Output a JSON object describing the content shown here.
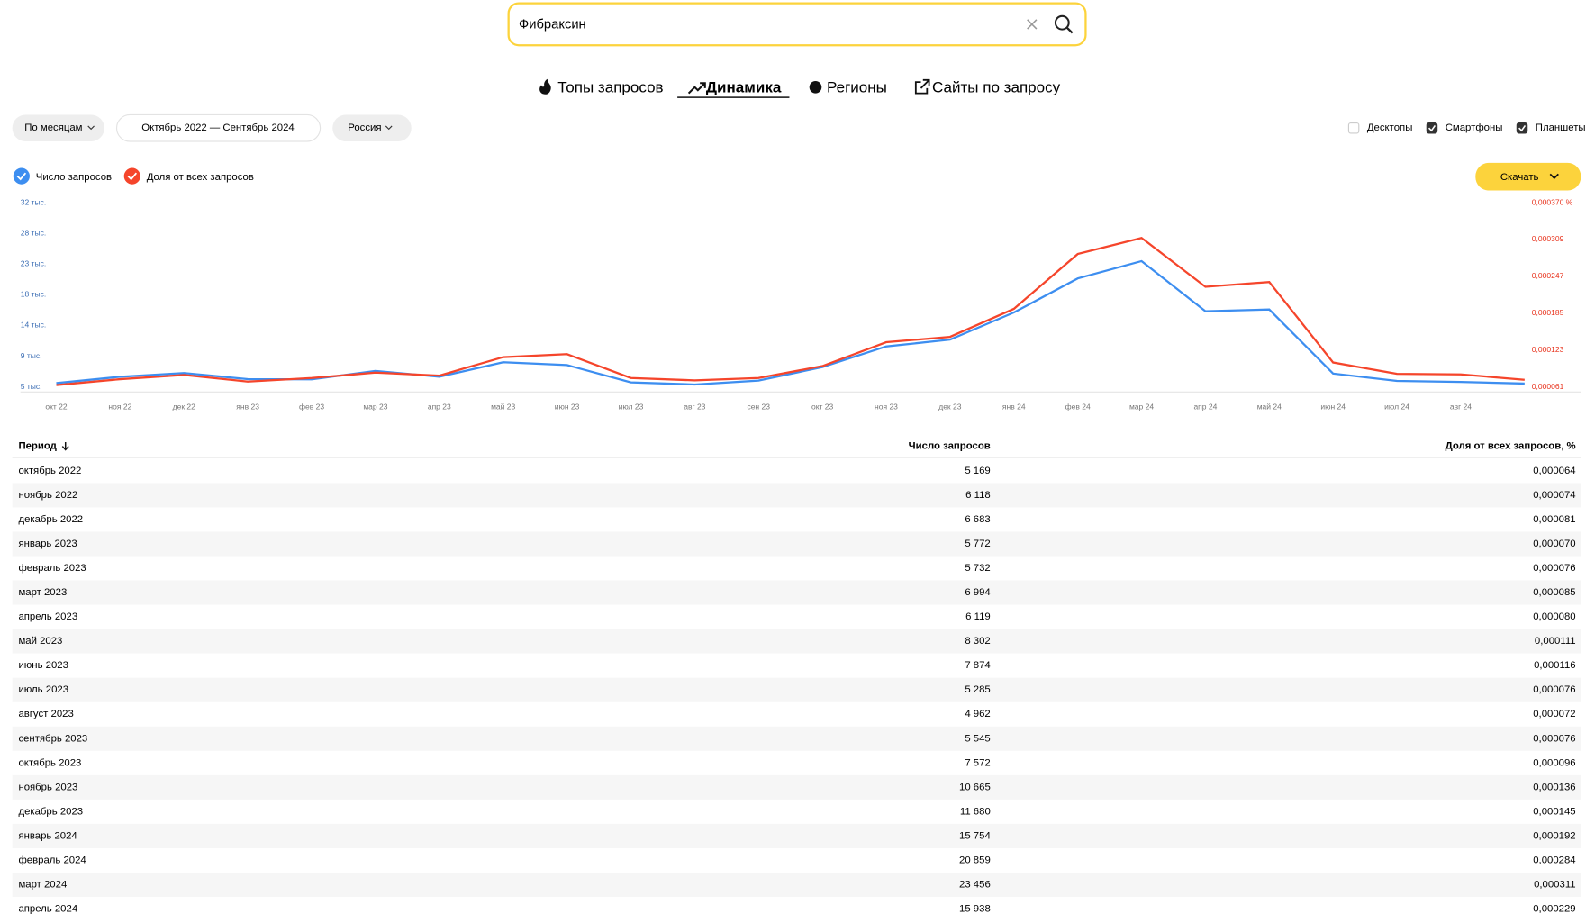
{
  "search": {
    "query": "Фибраксин"
  },
  "tabs": [
    "Топы запросов",
    "Динамика",
    "Регионы",
    "Сайты по запросу"
  ],
  "active_tab": 1,
  "filters": {
    "grouping": "По месяцам",
    "period": "Октябрь 2022 — Сентябрь 2024",
    "region": "Россия"
  },
  "devices": [
    {
      "label": "Десктопы",
      "checked": false
    },
    {
      "label": "Смартфоны",
      "checked": true
    },
    {
      "label": "Планшеты",
      "checked": true
    }
  ],
  "download": "Скачать",
  "chart_data": {
    "type": "line",
    "categories": [
      "окт 22",
      "ноя 22",
      "дек 22",
      "янв 23",
      "фев 23",
      "мар 23",
      "апр 23",
      "май 23",
      "июн 23",
      "июл 23",
      "авг 23",
      "сен 23",
      "окт 23",
      "ноя 23",
      "дек 23",
      "янв 24",
      "фев 24",
      "мар 24",
      "апр 24",
      "май 24",
      "июн 24",
      "июл 24",
      "авг 24",
      null
    ],
    "series": [
      {
        "name": "Число запросов",
        "color": "#3d8ef0",
        "values": [
          5169,
          6118,
          6683,
          5772,
          5732,
          6994,
          6119,
          8302,
          7874,
          5285,
          4962,
          5545,
          7572,
          10665,
          11680,
          15754,
          20859,
          23456,
          15938,
          16200,
          6600,
          5500,
          5350,
          5100
        ]
      },
      {
        "name": "Доля от всех запросов",
        "color": "#f5452b",
        "axis": "y2",
        "values": [
          6.4e-05,
          7.4e-05,
          8.1e-05,
          7e-05,
          7.6e-05,
          8.5e-05,
          8e-05,
          0.000111,
          0.000116,
          7.6e-05,
          7.2e-05,
          7.6e-05,
          9.6e-05,
          0.000136,
          0.000145,
          0.000192,
          0.000284,
          0.000311,
          0.000229,
          0.000237,
          0.000102,
          8.3e-05,
          8.2e-05,
          7.3e-05
        ]
      }
    ],
    "ylim": [
      3830,
      32200
    ],
    "yticks": [
      {
        "value": 4600,
        "label": "5 тыс."
      },
      {
        "value": 9200,
        "label": "9 тыс."
      },
      {
        "value": 13800,
        "label": "14 тыс."
      },
      {
        "value": 18400,
        "label": "18 тыс."
      },
      {
        "value": 23000,
        "label": "23 тыс."
      },
      {
        "value": 27600,
        "label": "28 тыс."
      },
      {
        "value": 32200,
        "label": "32 тыс."
      }
    ],
    "y2lim": [
      5.24e-05,
      0.00037
    ],
    "y2ticks": [
      {
        "value": 6.1e-05,
        "label": "0,000061"
      },
      {
        "value": 0.000123,
        "label": "0,000123"
      },
      {
        "value": 0.000185,
        "label": "0,000185"
      },
      {
        "value": 0.000247,
        "label": "0,000247"
      },
      {
        "value": 0.000309,
        "label": "0,000309"
      },
      {
        "value": 0.00037,
        "label": "0,000370 %"
      }
    ]
  },
  "table": {
    "header": [
      "Период",
      "Число запросов",
      "Доля от всех запросов, %"
    ],
    "rows": [
      [
        "октябрь 2022",
        "5 169",
        "0,000064"
      ],
      [
        "ноябрь 2022",
        "6 118",
        "0,000074"
      ],
      [
        "декабрь 2022",
        "6 683",
        "0,000081"
      ],
      [
        "январь 2023",
        "5 772",
        "0,000070"
      ],
      [
        "февраль 2023",
        "5 732",
        "0,000076"
      ],
      [
        "март 2023",
        "6 994",
        "0,000085"
      ],
      [
        "апрель 2023",
        "6 119",
        "0,000080"
      ],
      [
        "май 2023",
        "8 302",
        "0,000111"
      ],
      [
        "июнь 2023",
        "7 874",
        "0,000116"
      ],
      [
        "июль 2023",
        "5 285",
        "0,000076"
      ],
      [
        "август 2023",
        "4 962",
        "0,000072"
      ],
      [
        "сентябрь 2023",
        "5 545",
        "0,000076"
      ],
      [
        "октябрь 2023",
        "7 572",
        "0,000096"
      ],
      [
        "ноябрь 2023",
        "10 665",
        "0,000136"
      ],
      [
        "декабрь 2023",
        "11 680",
        "0,000145"
      ],
      [
        "январь 2024",
        "15 754",
        "0,000192"
      ],
      [
        "февраль 2024",
        "20 859",
        "0,000284"
      ],
      [
        "март 2024",
        "23 456",
        "0,000311"
      ],
      [
        "апрель 2024",
        "15 938",
        "0,000229"
      ]
    ]
  }
}
